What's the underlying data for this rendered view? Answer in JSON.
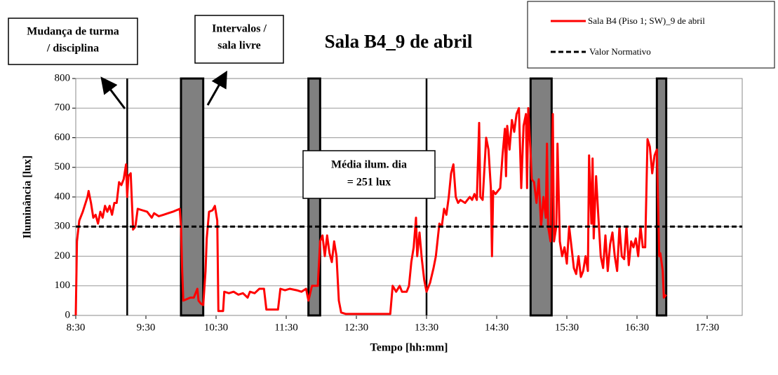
{
  "chart_data": {
    "type": "line",
    "title": "Sala B4_9 de abril",
    "xlabel": "Tempo [hh:mm]",
    "ylabel": "Iluminância [lux]",
    "xlim": [
      510,
      1080
    ],
    "xticks": [
      {
        "value": 510,
        "label": "8:30"
      },
      {
        "value": 570,
        "label": "9:30"
      },
      {
        "value": 630,
        "label": "10:30"
      },
      {
        "value": 690,
        "label": "11:30"
      },
      {
        "value": 750,
        "label": "12:30"
      },
      {
        "value": 810,
        "label": "13:30"
      },
      {
        "value": 870,
        "label": "14:30"
      },
      {
        "value": 930,
        "label": "15:30"
      },
      {
        "value": 990,
        "label": "16:30"
      },
      {
        "value": 1050,
        "label": "17:30"
      }
    ],
    "ylim": [
      0,
      800
    ],
    "yticks": [
      0,
      100,
      200,
      300,
      400,
      500,
      600,
      700,
      800
    ],
    "grid": true,
    "x": [
      510,
      511,
      513,
      516,
      520,
      521,
      523,
      525,
      527,
      529,
      531,
      533,
      535,
      537,
      539,
      541,
      543,
      545,
      547,
      549,
      551,
      553,
      554,
      555,
      557,
      559,
      561,
      563,
      567,
      571,
      575,
      577,
      581,
      585,
      589,
      593,
      596,
      599,
      600,
      601,
      602,
      605,
      608,
      611,
      614,
      615,
      617,
      619,
      621,
      622,
      624,
      627,
      629,
      631,
      632,
      636,
      637,
      641,
      645,
      649,
      653,
      657,
      659,
      663,
      667,
      671,
      673,
      677,
      683,
      685,
      689,
      693,
      699,
      703,
      707,
      709,
      712,
      717,
      719,
      721,
      723,
      725,
      727,
      729,
      731,
      733,
      735,
      737,
      741,
      760,
      779,
      781,
      784,
      787,
      789,
      793,
      795,
      797,
      799,
      801,
      802,
      804,
      806,
      808,
      810,
      813,
      816,
      818,
      821,
      823,
      825,
      827,
      829,
      831,
      833,
      835,
      837,
      839,
      843,
      845,
      847,
      849,
      851,
      853,
      855,
      856,
      858,
      861,
      863,
      865,
      866,
      867,
      869,
      873,
      875,
      877,
      878,
      879,
      881,
      883,
      885,
      887,
      889,
      891,
      893,
      895,
      896,
      897,
      899,
      900,
      902,
      904,
      906,
      908,
      910,
      912,
      913,
      914,
      916,
      918,
      919,
      921,
      922,
      924,
      926,
      928,
      930,
      932,
      934,
      936,
      938,
      940,
      942,
      944,
      946,
      948,
      949,
      951,
      952,
      953,
      955,
      957,
      959,
      961,
      963,
      965,
      967,
      969,
      971,
      973,
      975,
      977,
      979,
      981,
      983,
      985,
      987,
      989,
      991,
      993,
      995,
      997,
      999,
      1001,
      1003,
      1005,
      1007,
      1008,
      1009,
      1010,
      1012,
      1013,
      1015
    ],
    "series": [
      {
        "name": "Sala B4 (Piso 1; SW)_9 de abril",
        "color": "#ff0000",
        "values": [
          0,
          250,
          320,
          350,
          400,
          420,
          380,
          330,
          340,
          310,
          350,
          330,
          370,
          350,
          370,
          340,
          380,
          380,
          450,
          440,
          460,
          510,
          400,
          470,
          480,
          290,
          300,
          360,
          355,
          350,
          330,
          345,
          335,
          340,
          345,
          350,
          355,
          360,
          300,
          150,
          50,
          55,
          60,
          60,
          90,
          50,
          40,
          35,
          150,
          260,
          350,
          355,
          370,
          320,
          15,
          15,
          80,
          75,
          80,
          70,
          75,
          60,
          80,
          75,
          90,
          90,
          20,
          20,
          20,
          90,
          85,
          90,
          85,
          80,
          90,
          50,
          100,
          100,
          250,
          270,
          200,
          270,
          210,
          180,
          250,
          200,
          50,
          10,
          5,
          5,
          5,
          100,
          80,
          100,
          80,
          80,
          100,
          180,
          230,
          330,
          200,
          280,
          190,
          120,
          80,
          110,
          160,
          200,
          310,
          300,
          360,
          340,
          400,
          480,
          510,
          400,
          380,
          390,
          380,
          390,
          400,
          390,
          410,
          390,
          650,
          400,
          390,
          600,
          560,
          430,
          200,
          420,
          410,
          430,
          540,
          630,
          470,
          640,
          560,
          660,
          620,
          680,
          700,
          430,
          640,
          680,
          430,
          700,
          550,
          460,
          450,
          380,
          460,
          300,
          400,
          330,
          580,
          300,
          250,
          680,
          250,
          300,
          580,
          250,
          200,
          230,
          175,
          300,
          230,
          160,
          140,
          200,
          130,
          150,
          200,
          150,
          540,
          310,
          530,
          260,
          470,
          330,
          200,
          160,
          270,
          150,
          240,
          280,
          200,
          150,
          300,
          200,
          190,
          300,
          170,
          250,
          230,
          260,
          200,
          300,
          230,
          230,
          595,
          570,
          480,
          540,
          560,
          380,
          200,
          210,
          150,
          60,
          70
        ]
      }
    ],
    "reference": {
      "name": "Valor Normativo",
      "value": 300
    },
    "intervals": [
      [
        600,
        619
      ],
      [
        709,
        719
      ],
      [
        899,
        917
      ],
      [
        1007,
        1015
      ]
    ],
    "markers": [
      554,
      810
    ],
    "annotations": [
      "Mudança de turma",
      "/ disciplina",
      "Intervalos /",
      "sala livre",
      "Média ilum. dia",
      "= 251 lux"
    ]
  }
}
